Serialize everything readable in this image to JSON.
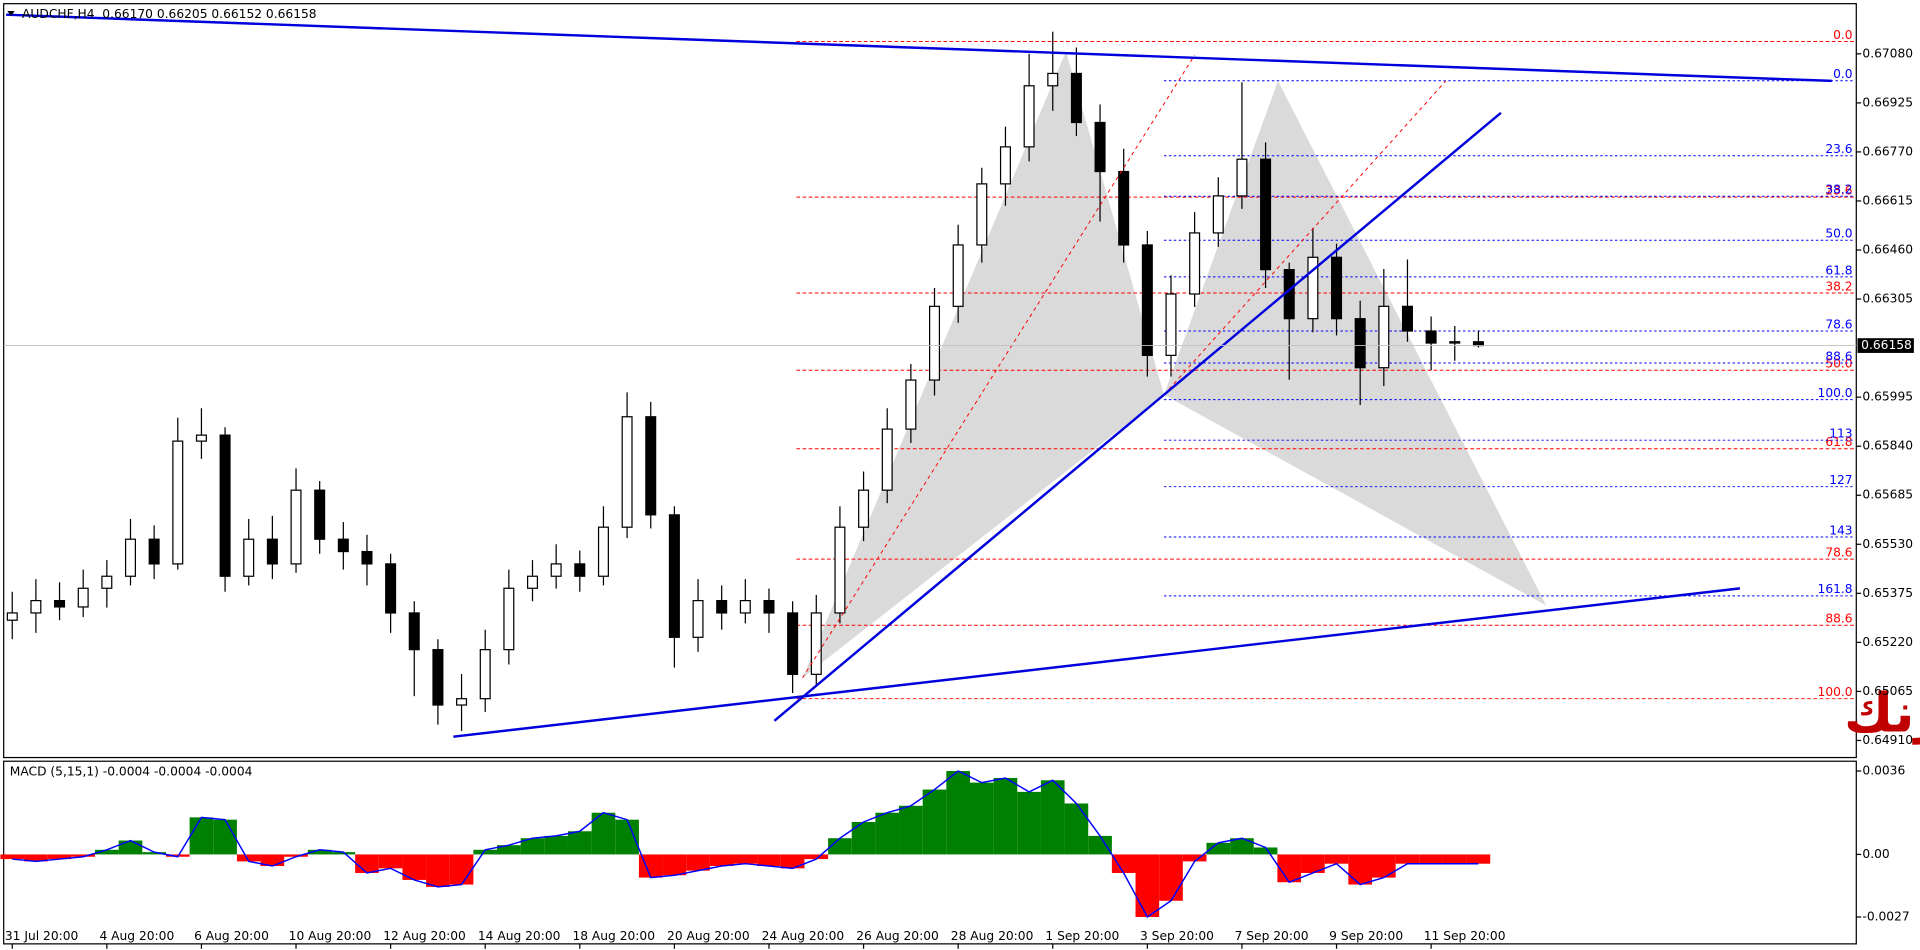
{
  "chart_data": {
    "type": "candlestick",
    "title": "AUDCHF,H4  0.66170 0.66205 0.66152 0.66158",
    "categories": [
      "31 Jul 20:00",
      null,
      null,
      null,
      "4 Aug 20:00",
      null,
      null,
      null,
      "6 Aug 20:00",
      null,
      null,
      null,
      "10 Aug 20:00",
      null,
      null,
      null,
      "12 Aug 20:00",
      null,
      null,
      null,
      "14 Aug 20:00",
      null,
      null,
      null,
      "18 Aug 20:00",
      null,
      null,
      null,
      "20 Aug 20:00",
      null,
      null,
      null,
      "24 Aug 20:00",
      null,
      null,
      null,
      "26 Aug 20:00",
      null,
      null,
      null,
      "28 Aug 20:00",
      null,
      null,
      null,
      "1 Sep 20:00",
      null,
      null,
      null,
      "3 Sep 20:00",
      null,
      null,
      null,
      "7 Sep 20:00",
      null,
      null,
      null,
      "9 Sep 20:00",
      null,
      null,
      null,
      "11 Sep 20:00",
      null,
      null
    ],
    "candles": [
      [
        0.6529,
        0.6538,
        0.6523,
        0.65313
      ],
      [
        0.65313,
        0.6542,
        0.6525,
        0.65352
      ],
      [
        0.65352,
        0.6541,
        0.6529,
        0.65332
      ],
      [
        0.65332,
        0.6545,
        0.653,
        0.65391
      ],
      [
        0.65391,
        0.6548,
        0.6533,
        0.65429
      ],
      [
        0.65429,
        0.6561,
        0.654,
        0.65546
      ],
      [
        0.65546,
        0.6559,
        0.6542,
        0.65468
      ],
      [
        0.65468,
        0.6593,
        0.6545,
        0.65856
      ],
      [
        0.65856,
        0.6596,
        0.658,
        0.65875
      ],
      [
        0.65875,
        0.659,
        0.6538,
        0.65429
      ],
      [
        0.65429,
        0.6561,
        0.654,
        0.65546
      ],
      [
        0.65546,
        0.6562,
        0.6542,
        0.65468
      ],
      [
        0.65468,
        0.6577,
        0.6544,
        0.65701
      ],
      [
        0.65701,
        0.6573,
        0.655,
        0.65546
      ],
      [
        0.65546,
        0.656,
        0.6545,
        0.65507
      ],
      [
        0.65507,
        0.6556,
        0.654,
        0.65468
      ],
      [
        0.65468,
        0.655,
        0.6525,
        0.65313
      ],
      [
        0.65313,
        0.6535,
        0.6505,
        0.65197
      ],
      [
        0.65197,
        0.6523,
        0.6496,
        0.65022
      ],
      [
        0.65022,
        0.6512,
        0.6494,
        0.65042
      ],
      [
        0.65042,
        0.6526,
        0.65,
        0.65197
      ],
      [
        0.65197,
        0.6545,
        0.6515,
        0.65391
      ],
      [
        0.65391,
        0.6548,
        0.6535,
        0.65429
      ],
      [
        0.65429,
        0.6553,
        0.6539,
        0.65468
      ],
      [
        0.65468,
        0.6551,
        0.6538,
        0.65429
      ],
      [
        0.65429,
        0.6565,
        0.654,
        0.65584
      ],
      [
        0.65584,
        0.6601,
        0.6555,
        0.65933
      ],
      [
        0.65933,
        0.6598,
        0.6558,
        0.65623
      ],
      [
        0.65623,
        0.6565,
        0.6514,
        0.65236
      ],
      [
        0.65236,
        0.6542,
        0.6519,
        0.65352
      ],
      [
        0.65352,
        0.654,
        0.6526,
        0.65313
      ],
      [
        0.65313,
        0.6542,
        0.6528,
        0.65352
      ],
      [
        0.65352,
        0.6539,
        0.6525,
        0.65313
      ],
      [
        0.65313,
        0.6535,
        0.6506,
        0.65119
      ],
      [
        0.65119,
        0.6537,
        0.6508,
        0.65313
      ],
      [
        0.65313,
        0.6565,
        0.6528,
        0.65584
      ],
      [
        0.65584,
        0.6576,
        0.6554,
        0.65701
      ],
      [
        0.65701,
        0.6596,
        0.6566,
        0.65894
      ],
      [
        0.65894,
        0.661,
        0.6585,
        0.66049
      ],
      [
        0.66049,
        0.6634,
        0.66,
        0.66282
      ],
      [
        0.66282,
        0.6654,
        0.6623,
        0.66476
      ],
      [
        0.66476,
        0.6672,
        0.6642,
        0.66669
      ],
      [
        0.66669,
        0.6685,
        0.666,
        0.66786
      ],
      [
        0.66786,
        0.6708,
        0.6674,
        0.66979
      ],
      [
        0.66979,
        0.6715,
        0.669,
        0.67018
      ],
      [
        0.67018,
        0.671,
        0.6682,
        0.66863
      ],
      [
        0.66863,
        0.6692,
        0.6655,
        0.66708
      ],
      [
        0.66708,
        0.6678,
        0.6642,
        0.66476
      ],
      [
        0.66476,
        0.6652,
        0.6606,
        0.66127
      ],
      [
        0.66127,
        0.6638,
        0.6606,
        0.66321
      ],
      [
        0.66321,
        0.6658,
        0.6628,
        0.66514
      ],
      [
        0.66514,
        0.6669,
        0.6647,
        0.66631
      ],
      [
        0.66631,
        0.6699,
        0.6659,
        0.66747
      ],
      [
        0.66747,
        0.668,
        0.6634,
        0.66398
      ],
      [
        0.66398,
        0.6642,
        0.6605,
        0.66243
      ],
      [
        0.66243,
        0.6653,
        0.662,
        0.66437
      ],
      [
        0.66437,
        0.6648,
        0.6619,
        0.66243
      ],
      [
        0.66243,
        0.663,
        0.6597,
        0.66088
      ],
      [
        0.66088,
        0.664,
        0.6603,
        0.66282
      ],
      [
        0.66282,
        0.6643,
        0.6617,
        0.66204
      ],
      [
        0.66204,
        0.6625,
        0.6608,
        0.66166
      ],
      [
        0.66166,
        0.6622,
        0.6611,
        0.6617
      ],
      [
        0.6617,
        0.66205,
        0.66152,
        0.66158
      ]
    ],
    "up_color": "#ffffff",
    "down_color": "#000000",
    "ylim": [
      0.64856,
      0.67223
    ],
    "yticks": [
      {
        "value": 0.6708,
        "label": "0.67080"
      },
      {
        "value": 0.66925,
        "label": "0.66925"
      },
      {
        "value": 0.6677,
        "label": "0.66770"
      },
      {
        "value": 0.66615,
        "label": "0.66615"
      },
      {
        "value": 0.6646,
        "label": "0.66460"
      },
      {
        "value": 0.66305,
        "label": "0.66305"
      },
      {
        "value": 0.65995,
        "label": "0.65995"
      },
      {
        "value": 0.6584,
        "label": "0.65840"
      },
      {
        "value": 0.65685,
        "label": "0.65685"
      },
      {
        "value": 0.6553,
        "label": "0.65530"
      },
      {
        "value": 0.65375,
        "label": "0.65375"
      },
      {
        "value": 0.6522,
        "label": "0.65220"
      },
      {
        "value": 0.65065,
        "label": "0.65065"
      },
      {
        "value": 0.6491,
        "label": "0.64910"
      }
    ],
    "current_price": 0.66158,
    "fib_levels": [
      {
        "color": "#ff0000",
        "labels": [
          "0.0",
          "23.6",
          "38.2",
          "50.0",
          "61.8",
          "78.6",
          "88.6",
          "100.0"
        ],
        "values": [
          0.67119,
          0.66627,
          0.66324,
          0.6608,
          0.65832,
          0.65483,
          0.65274,
          0.65042
        ]
      },
      {
        "color": "#0000ff",
        "labels": [
          "0.0",
          "23.6",
          "38.2",
          "50.0",
          "61.8",
          "78.6",
          "88.6",
          "100.0",
          "113",
          "127",
          "143",
          "161.8"
        ],
        "values": [
          0.66995,
          0.66758,
          0.6663,
          0.66491,
          0.66375,
          0.66204,
          0.66103,
          0.65987,
          0.65859,
          0.65712,
          0.65553,
          0.65367
        ]
      }
    ],
    "watermark": "أسترالي فرنك",
    "macd": {
      "title": "MACD (5,15,1) -0.0004 -0.0004 -0.0004",
      "values": [
        -0.0002,
        -0.0003,
        -0.0002,
        -0.0001,
        0.0002,
        0.0006,
        0.0001,
        -0.0001,
        0.0016,
        0.0015,
        -0.0003,
        -0.0005,
        -0.0001,
        0.0002,
        0.0001,
        -0.0008,
        -0.0006,
        -0.0011,
        -0.0014,
        -0.0013,
        0.0002,
        0.0004,
        0.0007,
        0.0008,
        0.001,
        0.0018,
        0.0015,
        -0.001,
        -0.0009,
        -0.0007,
        -0.0005,
        -0.0004,
        -0.0005,
        -0.0006,
        -0.0002,
        0.0007,
        0.0014,
        0.0018,
        0.0021,
        0.0028,
        0.0036,
        0.0031,
        0.0033,
        0.0027,
        0.0032,
        0.0022,
        0.0008,
        -0.0008,
        -0.0027,
        -0.002,
        -0.0003,
        0.0005,
        0.0007,
        0.0003,
        -0.0012,
        -0.0008,
        -0.0004,
        -0.0013,
        -0.001,
        -0.0004,
        -0.0004,
        -0.0004,
        -0.0004
      ],
      "ylim": [
        -0.00386,
        0.00397
      ],
      "yticks": [
        0.0036,
        {
          "value": 0,
          "label": "0.00"
        },
        -0.0027
      ],
      "positive_color": "#008000",
      "negative_color": "#ff0000",
      "line_color": "#0000ff"
    }
  }
}
